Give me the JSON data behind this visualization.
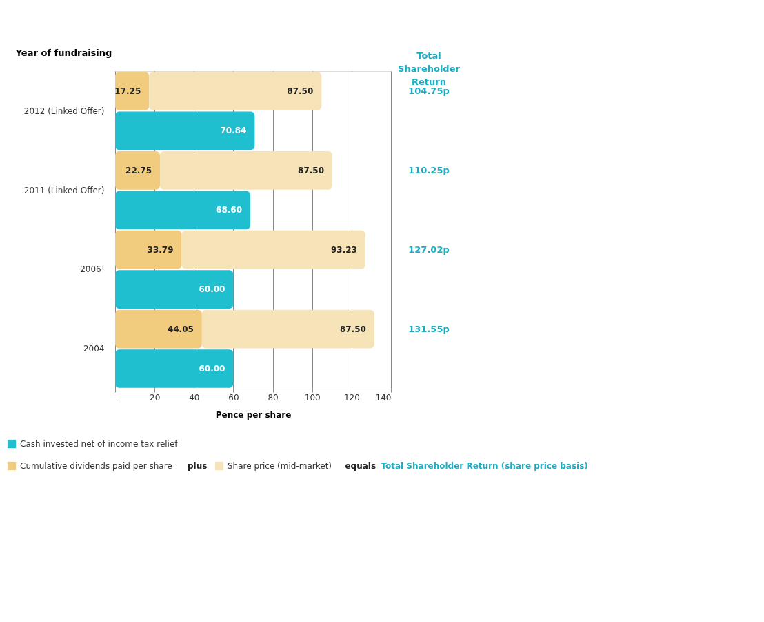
{
  "chart_data": {
    "type": "bar",
    "orientation": "horizontal",
    "stacked": true,
    "ylabel": "Year of fundraising",
    "xlabel": "Pence per share",
    "categories": [
      "2012 (Linked Offer)",
      null,
      "2011 (Linked Offer)",
      null,
      "2006¹",
      null,
      "2004",
      null
    ],
    "series": [
      {
        "name": "Cumulative dividends paid per share",
        "color": "#f2cc7e",
        "values": [
          17.25,
          null,
          22.75,
          null,
          33.79,
          null,
          44.05,
          null
        ],
        "value_labels": [
          "17.25",
          null,
          "22.75",
          null,
          "33.79",
          null,
          "44.05",
          null
        ]
      },
      {
        "name": "Share price (mid-market)",
        "color": "#f7e3b8",
        "values": [
          87.5,
          null,
          87.5,
          null,
          93.23,
          null,
          87.5,
          null
        ],
        "value_labels": [
          "87.50",
          null,
          "87.50",
          null,
          "93.23",
          null,
          "87.50",
          null
        ]
      },
      {
        "name": "Cash invested net of income tax relief",
        "color": "#1fbfd0",
        "values": [
          null,
          70.84,
          null,
          68.6,
          null,
          60.0,
          null,
          60.0
        ],
        "value_labels": [
          null,
          "70.84",
          null,
          "68.60",
          null,
          "60.00",
          null,
          "60.00"
        ]
      }
    ],
    "xlim": [
      0,
      140
    ],
    "xticks": [
      {
        "value": 0,
        "label": "-"
      },
      20,
      40,
      60,
      80,
      100,
      120,
      140
    ],
    "grid": "x",
    "legend": "bottom",
    "annotations": [
      "Total Shareholder Return",
      "plus",
      "equals",
      "Total Shareholder Return (share price basis)",
      "104.75p",
      "110.25p",
      "127.02p",
      "131.55p"
    ]
  }
}
